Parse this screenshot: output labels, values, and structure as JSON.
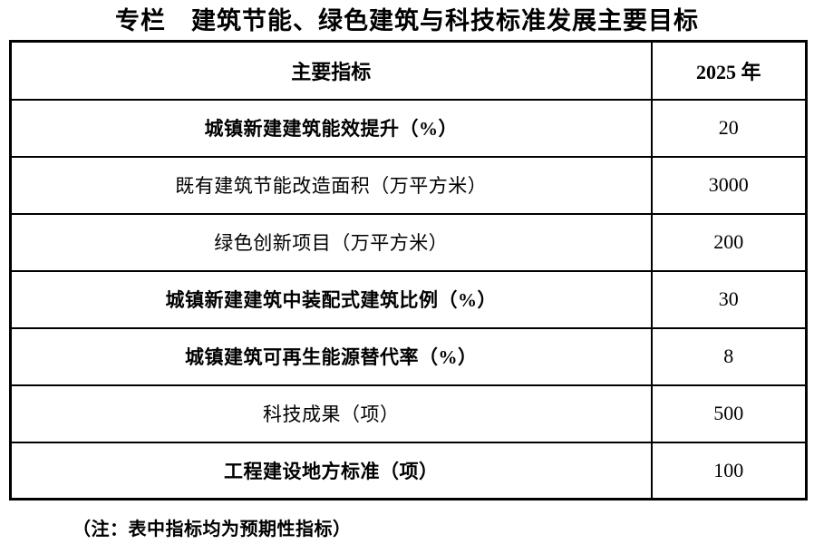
{
  "title": "专栏　建筑节能、绿色建筑与科技标准发展主要目标",
  "table": {
    "headers": [
      "主要指标",
      "2025 年"
    ],
    "rows": [
      {
        "indicator": "城镇新建建筑能效提升（%）",
        "value": "20"
      },
      {
        "indicator": "既有建筑节能改造面积（万平方米）",
        "value": "3000"
      },
      {
        "indicator": "绿色创新项目（万平方米）",
        "value": "200"
      },
      {
        "indicator": "城镇新建建筑中装配式建筑比例（%）",
        "value": "30"
      },
      {
        "indicator": "城镇建筑可再生能源替代率（%）",
        "value": "8"
      },
      {
        "indicator": "科技成果（项）",
        "value": "500"
      },
      {
        "indicator": "工程建设地方标准（项）",
        "value": "100"
      }
    ]
  },
  "note": "（注：表中指标均为预期性指标）",
  "colors": {
    "text": "#000000",
    "border": "#000000",
    "background": "#ffffff"
  }
}
